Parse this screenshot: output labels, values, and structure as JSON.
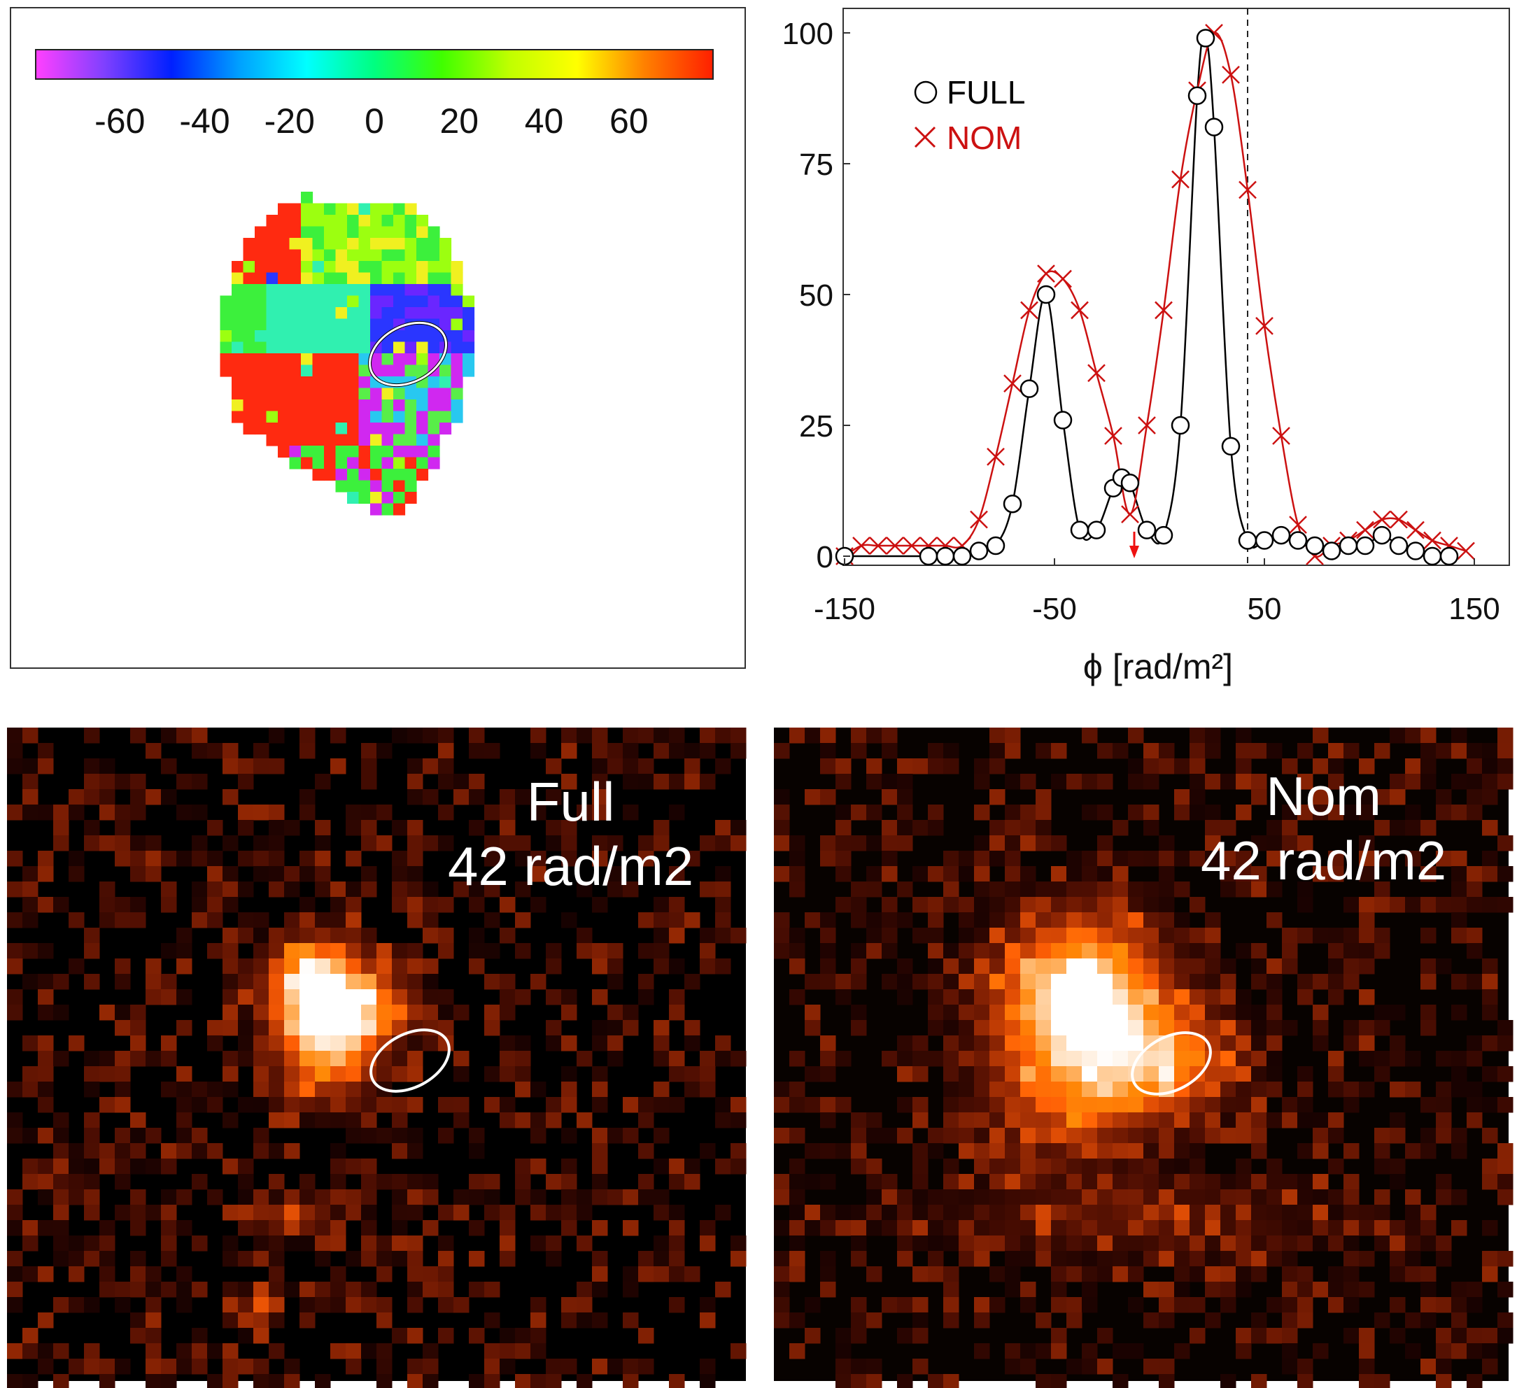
{
  "colorbar": {
    "ticks": [
      "-60",
      "-40",
      "-20",
      "0",
      "20",
      "40",
      "60"
    ],
    "tick_values": [
      -60,
      -40,
      -20,
      0,
      20,
      40,
      60
    ],
    "range": [
      -80,
      80
    ],
    "colors": [
      "#ff40ff",
      "#8040ff",
      "#0020ff",
      "#00a0ff",
      "#00ffff",
      "#00ff80",
      "#40ff00",
      "#c0ff00",
      "#ffff00",
      "#ff8000",
      "#ff2000"
    ]
  },
  "images": {
    "full": {
      "label_line1": "Full",
      "label_line2": "42 rad/m2"
    },
    "nom": {
      "label_line1": "Nom",
      "label_line2": "42 rad/m2"
    }
  },
  "chart_data": {
    "type": "line",
    "xlabel": "ϕ [rad/m²]",
    "ylabel": "",
    "xlim": [
      -150,
      150
    ],
    "ylim": [
      0,
      100
    ],
    "xticks": [
      "-150",
      "-50",
      "50",
      "150"
    ],
    "xtick_values": [
      -150,
      -50,
      50,
      150
    ],
    "yticks": [
      "0",
      "25",
      "50",
      "75",
      "100"
    ],
    "ytick_values": [
      0,
      25,
      50,
      75,
      100
    ],
    "vline_x": 42,
    "legend_position": "top-left",
    "series": [
      {
        "name": "FULL",
        "marker": "circle",
        "color": "#000000",
        "x": [
          -150,
          -110,
          -102,
          -94,
          -86,
          -78,
          -70,
          -62,
          -54,
          -46,
          -38,
          -30,
          -22,
          -18,
          -14,
          -6,
          2,
          10,
          18,
          22,
          26,
          34,
          42,
          50,
          58,
          66,
          74,
          82,
          90,
          98,
          106,
          114,
          122,
          130,
          138
        ],
        "y": [
          0,
          0,
          0,
          0,
          1,
          2,
          10,
          32,
          50,
          26,
          5,
          5,
          13,
          15,
          14,
          5,
          4,
          25,
          88,
          99,
          82,
          21,
          3,
          3,
          4,
          3,
          2,
          1,
          2,
          2,
          4,
          2,
          1,
          0,
          0
        ]
      },
      {
        "name": "NOM",
        "marker": "x",
        "color": "#cc1111",
        "x": [
          -150,
          -142,
          -134,
          -126,
          -118,
          -110,
          -102,
          -94,
          -86,
          -78,
          -70,
          -62,
          -54,
          -46,
          -38,
          -30,
          -22,
          -14,
          -6,
          2,
          10,
          18,
          26,
          34,
          42,
          50,
          58,
          66,
          74,
          82,
          90,
          98,
          106,
          114,
          122,
          130,
          138,
          146
        ],
        "y": [
          0,
          2,
          2,
          2,
          2,
          2,
          2,
          2,
          7,
          19,
          33,
          47,
          54,
          53,
          47,
          35,
          23,
          8,
          25,
          47,
          72,
          89,
          100,
          92,
          70,
          44,
          23,
          6,
          0,
          2,
          3,
          5,
          7,
          7,
          5,
          3,
          2,
          1
        ]
      }
    ]
  }
}
